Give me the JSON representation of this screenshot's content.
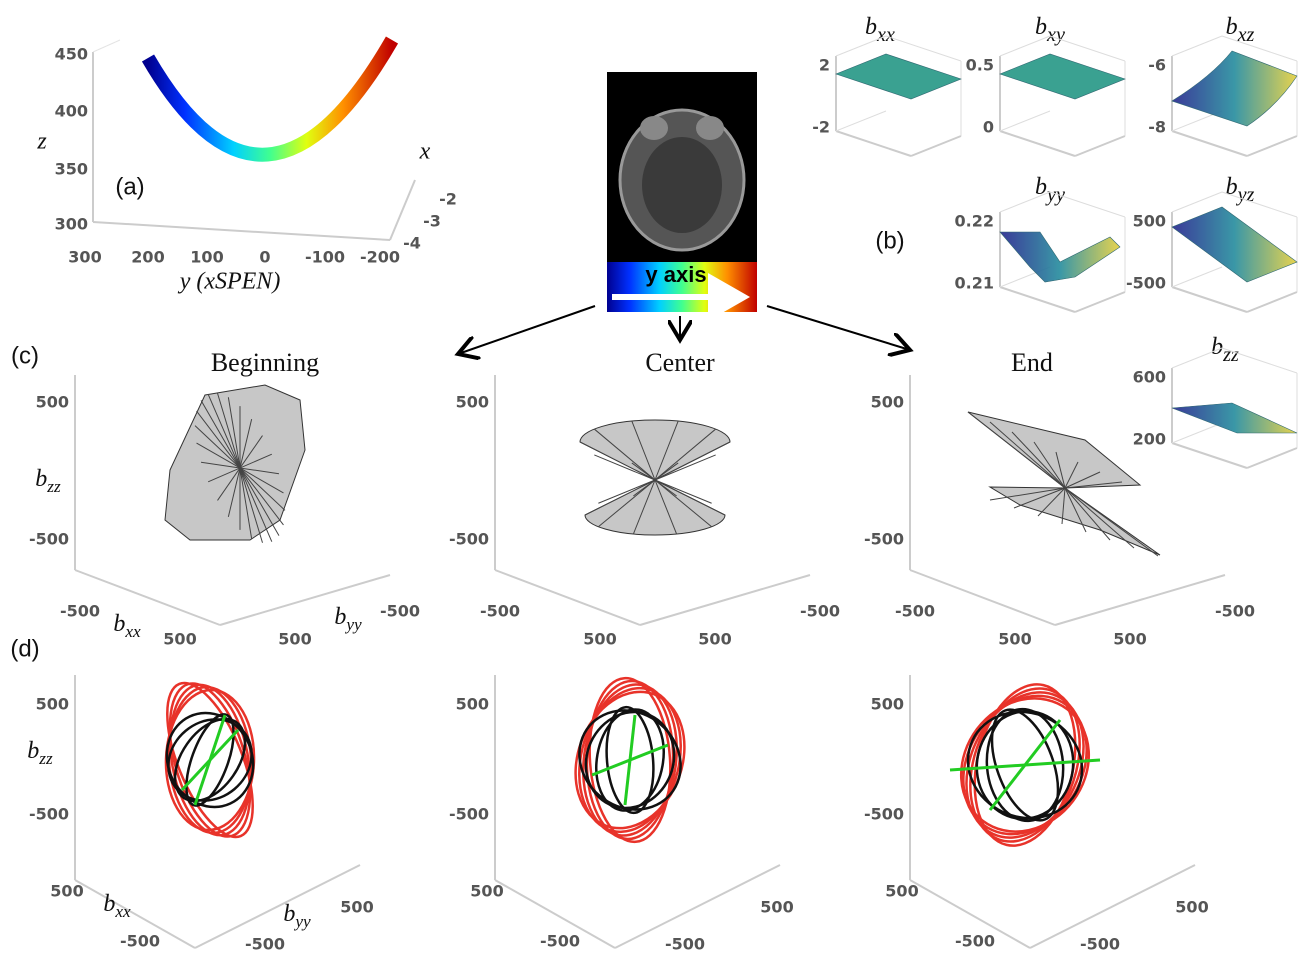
{
  "panel_a": {
    "label": "(a)",
    "z_label": "z",
    "y_label": "y (xSPEN)",
    "x_label": "x",
    "z_ticks": [
      450,
      400,
      350,
      300
    ],
    "y_ticks": [
      300,
      200,
      100,
      0,
      -100,
      -200
    ],
    "x_ticks": [
      -2,
      -3,
      -4
    ]
  },
  "image": {
    "caption": "y axis"
  },
  "panel_b": {
    "label": "(b)",
    "plots": [
      {
        "symbol": "b",
        "subscript": "xx",
        "ticks": [
          2,
          -2
        ]
      },
      {
        "symbol": "b",
        "subscript": "xy",
        "ticks": [
          0.5,
          0
        ]
      },
      {
        "symbol": "b",
        "subscript": "xz",
        "ticks": [
          -6,
          -8
        ]
      },
      {
        "symbol": "b",
        "subscript": "yy",
        "ticks": [
          0.22,
          0.21
        ]
      },
      {
        "symbol": "b",
        "subscript": "yz",
        "ticks": [
          500,
          -500
        ]
      },
      {
        "symbol": "b",
        "subscript": "zz",
        "ticks": [
          600,
          200
        ]
      }
    ]
  },
  "panel_c": {
    "label": "(c)",
    "axis_labels": {
      "z": {
        "symbol": "b",
        "subscript": "zz"
      },
      "x": {
        "symbol": "b",
        "subscript": "xx"
      },
      "y": {
        "symbol": "b",
        "subscript": "yy"
      }
    },
    "plots": [
      {
        "title": "Beginning",
        "z_ticks": [
          500,
          -500
        ],
        "x_ticks": [
          -500,
          500
        ],
        "y_ticks": [
          500,
          -500
        ]
      },
      {
        "title": "Center",
        "z_ticks": [
          500,
          -500
        ],
        "x_ticks": [
          -500,
          500
        ],
        "y_ticks": [
          500,
          -500
        ]
      },
      {
        "title": "End",
        "z_ticks": [
          500,
          -500
        ],
        "x_ticks": [
          -500,
          500
        ],
        "y_ticks": [
          500,
          -500
        ]
      }
    ]
  },
  "panel_d": {
    "label": "(d)",
    "axis_labels": {
      "z": {
        "symbol": "b",
        "subscript": "zz"
      },
      "x": {
        "symbol": "b",
        "subscript": "xx"
      },
      "y": {
        "symbol": "b",
        "subscript": "yy"
      }
    },
    "plots": [
      {
        "z_ticks": [
          500,
          -500
        ],
        "x_ticks": [
          500,
          -500
        ],
        "y_ticks": [
          -500,
          500
        ]
      },
      {
        "z_ticks": [
          500,
          -500
        ],
        "x_ticks": [
          500,
          -500
        ],
        "y_ticks": [
          -500,
          500
        ]
      },
      {
        "z_ticks": [
          500,
          -500
        ],
        "x_ticks": [
          500,
          -500
        ],
        "y_ticks": [
          -500,
          500
        ]
      }
    ]
  }
}
